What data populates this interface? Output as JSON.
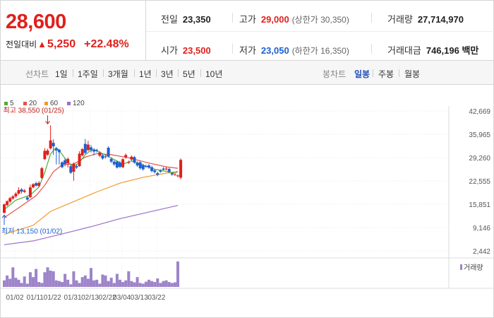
{
  "quote": {
    "price": "28,600",
    "change_label": "전일대비",
    "change_symbol": "▲",
    "change": "5,250",
    "change_pct": "+22.48%",
    "prev_label": "전일",
    "prev": "23,350",
    "open_label": "시가",
    "open": "23,500",
    "high_label": "고가",
    "high": "29,000",
    "upper_limit": "(상한가 30,350)",
    "low_label": "저가",
    "low": "23,050",
    "lower_limit": "(하한가 16,350)",
    "volume_label": "거래량",
    "volume": "27,714,970",
    "amount_label": "거래대금",
    "amount": "746,196 백만"
  },
  "tabs": {
    "line_chart": "선차트",
    "periods": [
      "1일",
      "1주일",
      "3개월",
      "1년",
      "3년",
      "5년",
      "10년"
    ],
    "candle_chart": "봉차트",
    "candle_periods": [
      "일봉",
      "주봉",
      "월봉"
    ],
    "selected_candle": "일봉"
  },
  "chart_data": {
    "type": "candlestick",
    "legend": [
      "5",
      "20",
      "60",
      "120"
    ],
    "colors": {
      "ma5": "#4fad3a",
      "ma20": "#e5524c",
      "ma60": "#f19a2a",
      "ma120": "#9b6fc9",
      "up": "#e0201c",
      "down": "#1f5fd1",
      "volume": "#9d84c9"
    },
    "y_ticks": [
      "42,669",
      "35,965",
      "29,260",
      "22,555",
      "15,851",
      "9,146",
      "2,442"
    ],
    "y_tick_values": [
      42669,
      35965,
      29260,
      22555,
      15851,
      9146,
      2442
    ],
    "ylim": [
      2442,
      42669
    ],
    "x_ticks": [
      "01/02",
      "01/11",
      "01/22",
      "01/31",
      "02/13",
      "02/22",
      "03/04",
      "03/13",
      "03/22"
    ],
    "x_tick_index": [
      0,
      7,
      13,
      20,
      26,
      32,
      37,
      43,
      49
    ],
    "volume_label": "거래량",
    "annotations": {
      "high": {
        "text": "최고 38,550 (01/25)",
        "index": 15,
        "value": 38550
      },
      "low": {
        "text": "최저 13,150 (01/02)",
        "index": 0,
        "value": 13150
      }
    },
    "candles": [
      {
        "o": 13400,
        "c": 15800,
        "h": 16100,
        "l": 13150
      },
      {
        "o": 15600,
        "c": 16700,
        "h": 17000,
        "l": 15300
      },
      {
        "o": 16600,
        "c": 17600,
        "h": 18000,
        "l": 16200
      },
      {
        "o": 17500,
        "c": 18100,
        "h": 18500,
        "l": 17100
      },
      {
        "o": 18100,
        "c": 18900,
        "h": 19300,
        "l": 17700
      },
      {
        "o": 18900,
        "c": 19900,
        "h": 20700,
        "l": 18600
      },
      {
        "o": 20100,
        "c": 19500,
        "h": 20500,
        "l": 18900
      },
      {
        "o": 19400,
        "c": 19800,
        "h": 20200,
        "l": 19100
      },
      {
        "o": 17800,
        "c": 17200,
        "h": 18200,
        "l": 16900
      },
      {
        "o": 17900,
        "c": 20700,
        "h": 21500,
        "l": 17600
      },
      {
        "o": 20700,
        "c": 21600,
        "h": 21900,
        "l": 20400
      },
      {
        "o": 21900,
        "c": 21200,
        "h": 22300,
        "l": 20900
      },
      {
        "o": 21100,
        "c": 22000,
        "h": 22500,
        "l": 20700
      },
      {
        "o": 23400,
        "c": 26200,
        "h": 26600,
        "l": 23100
      },
      {
        "o": 28800,
        "c": 31200,
        "h": 32000,
        "l": 28600
      },
      {
        "o": 30100,
        "c": 31300,
        "h": 31800,
        "l": 29800
      },
      {
        "o": 31900,
        "c": 34200,
        "h": 38550,
        "l": 31600
      },
      {
        "o": 33500,
        "c": 32500,
        "h": 34500,
        "l": 30000
      },
      {
        "o": 31800,
        "c": 31300,
        "h": 32100,
        "l": 27300
      },
      {
        "o": 31500,
        "c": 30800,
        "h": 31800,
        "l": 27300
      },
      {
        "o": 27900,
        "c": 26500,
        "h": 28200,
        "l": 26200
      },
      {
        "o": 28500,
        "c": 27400,
        "h": 29100,
        "l": 26700
      },
      {
        "o": 27600,
        "c": 28900,
        "h": 29300,
        "l": 26400
      },
      {
        "o": 26800,
        "c": 24900,
        "h": 27200,
        "l": 24600
      },
      {
        "o": 25200,
        "c": 27500,
        "h": 27900,
        "l": 22600
      },
      {
        "o": 26800,
        "c": 26400,
        "h": 27200,
        "l": 26000
      },
      {
        "o": 26800,
        "c": 30400,
        "h": 31100,
        "l": 26600
      },
      {
        "o": 29900,
        "c": 31700,
        "h": 32000,
        "l": 29600
      },
      {
        "o": 33200,
        "c": 30600,
        "h": 34600,
        "l": 30300
      },
      {
        "o": 31400,
        "c": 33000,
        "h": 34100,
        "l": 31100
      },
      {
        "o": 32200,
        "c": 31500,
        "h": 32900,
        "l": 30700
      },
      {
        "o": 31600,
        "c": 31000,
        "h": 32000,
        "l": 29900
      },
      {
        "o": 31500,
        "c": 31300,
        "h": 31800,
        "l": 30700
      },
      {
        "o": 29800,
        "c": 30700,
        "h": 31100,
        "l": 29400
      },
      {
        "o": 29900,
        "c": 29000,
        "h": 30300,
        "l": 28600
      },
      {
        "o": 29600,
        "c": 29400,
        "h": 30000,
        "l": 29000
      },
      {
        "o": 32100,
        "c": 29600,
        "h": 32500,
        "l": 29300
      },
      {
        "o": 28900,
        "c": 28100,
        "h": 29300,
        "l": 27700
      },
      {
        "o": 28100,
        "c": 27300,
        "h": 28500,
        "l": 26900
      },
      {
        "o": 28100,
        "c": 26400,
        "h": 28400,
        "l": 26100
      },
      {
        "o": 27800,
        "c": 26600,
        "h": 28300,
        "l": 26200
      },
      {
        "o": 26500,
        "c": 28800,
        "h": 29100,
        "l": 26200
      },
      {
        "o": 29300,
        "c": 30000,
        "h": 30400,
        "l": 28900
      },
      {
        "o": 27900,
        "c": 27900,
        "h": 28400,
        "l": 27500
      },
      {
        "o": 28700,
        "c": 29500,
        "h": 29900,
        "l": 28300
      },
      {
        "o": 29400,
        "c": 27800,
        "h": 29700,
        "l": 27500
      },
      {
        "o": 27800,
        "c": 27000,
        "h": 28200,
        "l": 26600
      },
      {
        "o": 27900,
        "c": 26200,
        "h": 28200,
        "l": 25800
      },
      {
        "o": 27100,
        "c": 25900,
        "h": 27500,
        "l": 25500
      },
      {
        "o": 26800,
        "c": 26700,
        "h": 27200,
        "l": 26300
      },
      {
        "o": 27000,
        "c": 26400,
        "h": 27400,
        "l": 26000
      },
      {
        "o": 26500,
        "c": 25400,
        "h": 26900,
        "l": 25000
      },
      {
        "o": 25600,
        "c": 25100,
        "h": 26000,
        "l": 24700
      },
      {
        "o": 24800,
        "c": 24300,
        "h": 25200,
        "l": 23900
      },
      {
        "o": 25500,
        "c": 25200,
        "h": 25900,
        "l": 24900
      },
      {
        "o": 26100,
        "c": 25800,
        "h": 26500,
        "l": 25500
      },
      {
        "o": 26000,
        "c": 26100,
        "h": 26600,
        "l": 25600
      },
      {
        "o": 26000,
        "c": 25200,
        "h": 26300,
        "l": 24800
      },
      {
        "o": 24800,
        "c": 24400,
        "h": 25100,
        "l": 24000
      },
      {
        "o": 24400,
        "c": 24400,
        "h": 24700,
        "l": 24100
      },
      {
        "o": 24000,
        "c": 24100,
        "h": 24400,
        "l": 23600
      },
      {
        "o": 23500,
        "c": 28600,
        "h": 29000,
        "l": 23050
      }
    ],
    "ma5": [
      [
        0,
        14300
      ],
      [
        4,
        17000
      ],
      [
        9,
        18500
      ],
      [
        12,
        20800
      ],
      [
        14,
        25000
      ],
      [
        16,
        30300
      ],
      [
        18,
        32200
      ],
      [
        20,
        30200
      ],
      [
        22,
        27900
      ],
      [
        24,
        26700
      ],
      [
        26,
        27900
      ],
      [
        28,
        30100
      ],
      [
        30,
        31400
      ],
      [
        32,
        31200
      ],
      [
        35,
        30000
      ],
      [
        38,
        28700
      ],
      [
        41,
        27400
      ],
      [
        44,
        28300
      ],
      [
        48,
        27100
      ],
      [
        52,
        25900
      ],
      [
        56,
        25300
      ],
      [
        59,
        24800
      ],
      [
        60,
        25200
      ]
    ],
    "ma20": [
      [
        0,
        12000
      ],
      [
        6,
        15400
      ],
      [
        11,
        18300
      ],
      [
        14,
        21300
      ],
      [
        17,
        25200
      ],
      [
        20,
        27200
      ],
      [
        24,
        27400
      ],
      [
        28,
        29400
      ],
      [
        32,
        30400
      ],
      [
        37,
        30100
      ],
      [
        43,
        29200
      ],
      [
        50,
        27700
      ],
      [
        56,
        26600
      ],
      [
        60,
        26200
      ]
    ],
    "ma60": [
      [
        0,
        7200
      ],
      [
        10,
        9800
      ],
      [
        16,
        13800
      ],
      [
        24,
        16600
      ],
      [
        32,
        19400
      ],
      [
        40,
        21900
      ],
      [
        48,
        23600
      ],
      [
        56,
        24800
      ],
      [
        60,
        25300
      ]
    ],
    "ma120": [
      [
        0,
        4200
      ],
      [
        10,
        5300
      ],
      [
        20,
        7300
      ],
      [
        30,
        9400
      ],
      [
        40,
        11700
      ],
      [
        50,
        13600
      ],
      [
        60,
        15500
      ]
    ],
    "volume": [
      20,
      35,
      25,
      60,
      28,
      22,
      12,
      32,
      10,
      45,
      30,
      55,
      15,
      12,
      45,
      60,
      50,
      48,
      20,
      18,
      15,
      40,
      22,
      8,
      48,
      20,
      12,
      30,
      35,
      25,
      58,
      20,
      22,
      10,
      38,
      35,
      18,
      28,
      12,
      40,
      22,
      15,
      20,
      48,
      18,
      14,
      30,
      12,
      10,
      16,
      22,
      18,
      15,
      26,
      12,
      18,
      20,
      15,
      12,
      14,
      78
    ]
  }
}
